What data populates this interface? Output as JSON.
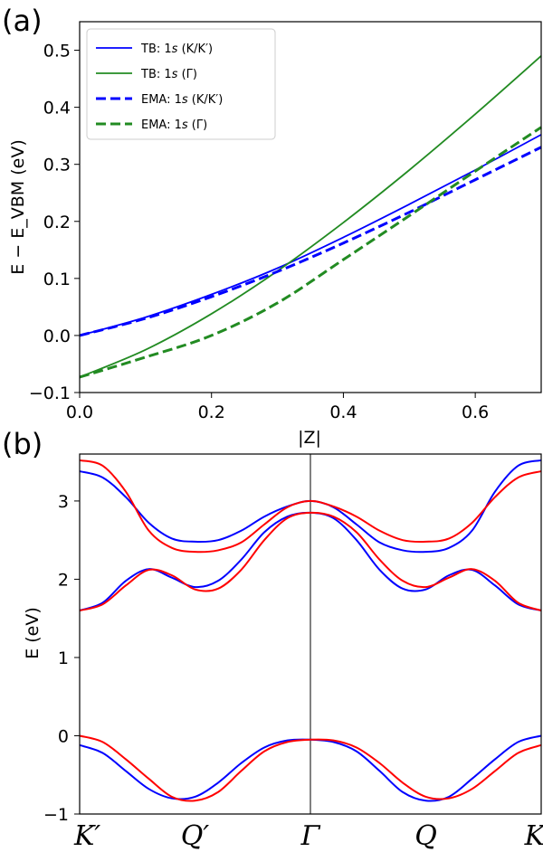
{
  "chart_data": [
    {
      "panel_label": "(a)",
      "type": "line",
      "xlabel": "|Z|",
      "ylabel": "E − E_VBM (eV)",
      "xlim": [
        0.0,
        0.7
      ],
      "ylim": [
        -0.1,
        0.55
      ],
      "xticks": [
        "0.0",
        "0.2",
        "0.4",
        "0.6"
      ],
      "yticks": [
        "−0.1",
        "0.0",
        "0.1",
        "0.2",
        "0.3",
        "0.4",
        "0.5"
      ],
      "legend_position": "top-left",
      "series": [
        {
          "name": "TB: 1s (K/K′)",
          "legend_prefix": "TB:",
          "legend_italic": "s",
          "legend_suffix": "(K/K′)",
          "color": "#0000ff",
          "style": "solid",
          "x": [
            0,
            0.1,
            0.2,
            0.3,
            0.4,
            0.5,
            0.6,
            0.7
          ],
          "y": [
            0.0,
            0.032,
            0.072,
            0.118,
            0.172,
            0.23,
            0.29,
            0.352
          ]
        },
        {
          "name": "TB: 1s (Γ)",
          "legend_prefix": "TB:",
          "legend_italic": "s",
          "legend_suffix": "(Γ)",
          "color": "#228b22",
          "style": "solid",
          "x": [
            0,
            0.1,
            0.2,
            0.3,
            0.4,
            0.5,
            0.6,
            0.7
          ],
          "y": [
            -0.073,
            -0.025,
            0.038,
            0.113,
            0.198,
            0.29,
            0.388,
            0.49
          ]
        },
        {
          "name": "EMA: 1s (K/K′)",
          "legend_prefix": "EMA:",
          "legend_italic": "s",
          "legend_suffix": "(K/K′)",
          "color": "#0000ff",
          "style": "dashed",
          "x": [
            0,
            0.1,
            0.2,
            0.3,
            0.4,
            0.5,
            0.6,
            0.7
          ],
          "y": [
            0.0,
            0.03,
            0.068,
            0.112,
            0.162,
            0.216,
            0.273,
            0.33
          ]
        },
        {
          "name": "EMA: 1s (Γ)",
          "legend_prefix": "EMA:",
          "legend_italic": "s",
          "legend_suffix": "(Γ)",
          "color": "#228b22",
          "style": "dashed",
          "x": [
            0,
            0.1,
            0.2,
            0.3,
            0.4,
            0.5,
            0.6,
            0.7
          ],
          "y": [
            -0.073,
            -0.038,
            0.0,
            0.057,
            0.133,
            0.21,
            0.288,
            0.365
          ]
        }
      ]
    },
    {
      "panel_label": "(b)",
      "type": "line",
      "xlabel": "",
      "ylabel": "E (eV)",
      "ylim": [
        -1.0,
        3.6
      ],
      "xlim": [
        0,
        1
      ],
      "yticks": [
        "−1",
        "0",
        "1",
        "2",
        "3"
      ],
      "k_points": [
        {
          "label": "K′",
          "pos": 0.0
        },
        {
          "label": "Q′",
          "pos": 0.25
        },
        {
          "label": "Γ",
          "pos": 0.5
        },
        {
          "label": "Q",
          "pos": 0.75
        },
        {
          "label": "K",
          "pos": 1.0
        }
      ],
      "vertical_line_at": 0.5,
      "series": [
        {
          "name": "blue band top",
          "color": "#0000ff",
          "x": [
            0,
            0.05,
            0.1,
            0.15,
            0.2,
            0.25,
            0.3,
            0.35,
            0.4,
            0.45,
            0.5,
            0.55,
            0.6,
            0.65,
            0.7,
            0.75,
            0.8,
            0.85,
            0.9,
            0.95,
            1.0
          ],
          "y": [
            3.38,
            3.3,
            3.05,
            2.72,
            2.52,
            2.48,
            2.5,
            2.62,
            2.8,
            2.93,
            3.0,
            2.92,
            2.7,
            2.47,
            2.37,
            2.35,
            2.4,
            2.62,
            3.12,
            3.45,
            3.52
          ]
        },
        {
          "name": "red band top",
          "color": "#ff0000",
          "x": [
            0,
            0.05,
            0.1,
            0.15,
            0.2,
            0.25,
            0.3,
            0.35,
            0.4,
            0.45,
            0.5,
            0.55,
            0.6,
            0.65,
            0.7,
            0.75,
            0.8,
            0.85,
            0.9,
            0.95,
            1.0
          ],
          "y": [
            3.52,
            3.45,
            3.12,
            2.62,
            2.4,
            2.35,
            2.37,
            2.47,
            2.7,
            2.92,
            3.0,
            2.93,
            2.8,
            2.62,
            2.5,
            2.48,
            2.52,
            2.72,
            3.05,
            3.3,
            3.38
          ]
        },
        {
          "name": "blue band middle",
          "color": "#0000ff",
          "x": [
            0,
            0.05,
            0.1,
            0.15,
            0.2,
            0.25,
            0.3,
            0.35,
            0.4,
            0.45,
            0.5,
            0.55,
            0.6,
            0.65,
            0.7,
            0.75,
            0.8,
            0.85,
            0.9,
            0.95,
            1.0
          ],
          "y": [
            1.6,
            1.7,
            1.98,
            2.13,
            2.02,
            1.9,
            1.98,
            2.25,
            2.6,
            2.8,
            2.85,
            2.78,
            2.5,
            2.12,
            1.88,
            1.87,
            2.05,
            2.12,
            1.92,
            1.68,
            1.6
          ]
        },
        {
          "name": "red band middle",
          "color": "#ff0000",
          "x": [
            0,
            0.05,
            0.1,
            0.15,
            0.2,
            0.25,
            0.3,
            0.35,
            0.4,
            0.45,
            0.5,
            0.55,
            0.6,
            0.65,
            0.7,
            0.75,
            0.8,
            0.85,
            0.9,
            0.95,
            1.0
          ],
          "y": [
            1.6,
            1.68,
            1.92,
            2.12,
            2.05,
            1.87,
            1.88,
            2.12,
            2.5,
            2.78,
            2.85,
            2.8,
            2.6,
            2.25,
            1.98,
            1.9,
            2.02,
            2.13,
            1.98,
            1.7,
            1.6
          ]
        },
        {
          "name": "blue band lower",
          "color": "#0000ff",
          "x": [
            0,
            0.05,
            0.1,
            0.15,
            0.2,
            0.25,
            0.3,
            0.35,
            0.4,
            0.45,
            0.5,
            0.55,
            0.6,
            0.65,
            0.7,
            0.75,
            0.8,
            0.85,
            0.9,
            0.95,
            1.0
          ],
          "y": [
            -0.12,
            -0.22,
            -0.45,
            -0.68,
            -0.8,
            -0.78,
            -0.6,
            -0.35,
            -0.15,
            -0.06,
            -0.05,
            -0.08,
            -0.2,
            -0.45,
            -0.72,
            -0.83,
            -0.78,
            -0.55,
            -0.3,
            -0.08,
            0.0
          ]
        },
        {
          "name": "red band lower",
          "color": "#ff0000",
          "x": [
            0,
            0.05,
            0.1,
            0.15,
            0.2,
            0.25,
            0.3,
            0.35,
            0.4,
            0.45,
            0.5,
            0.55,
            0.6,
            0.65,
            0.7,
            0.75,
            0.8,
            0.85,
            0.9,
            0.95,
            1.0
          ],
          "y": [
            0.0,
            -0.08,
            -0.3,
            -0.55,
            -0.78,
            -0.83,
            -0.72,
            -0.45,
            -0.2,
            -0.08,
            -0.05,
            -0.06,
            -0.15,
            -0.35,
            -0.6,
            -0.78,
            -0.8,
            -0.68,
            -0.45,
            -0.22,
            -0.12
          ]
        }
      ]
    }
  ]
}
